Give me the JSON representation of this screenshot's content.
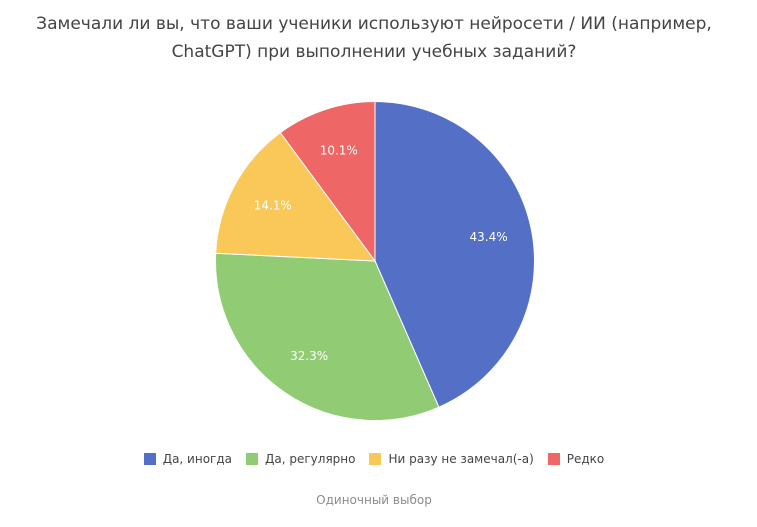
{
  "chart_data": {
    "type": "pie",
    "title_lines": [
      "Замечали ли вы, что ваши ученики используют нейросети / ИИ (например,",
      "ChatGPT) при выполнении учебных заданий?"
    ],
    "slices": [
      {
        "label": "Да, иногда",
        "value": 43.4,
        "value_label": "43.4%",
        "color": "#5470c6"
      },
      {
        "label": "Да, регулярно",
        "value": 32.3,
        "value_label": "32.3%",
        "color": "#91cc75"
      },
      {
        "label": "Ни разу не замечал(-а)",
        "value": 14.1,
        "value_label": "14.1%",
        "color": "#fac858"
      },
      {
        "label": "Редко",
        "value": 10.1,
        "value_label": "10.1%",
        "color": "#ee6666"
      }
    ],
    "legend_position": "bottom",
    "footer": "Одиночный выбор"
  }
}
